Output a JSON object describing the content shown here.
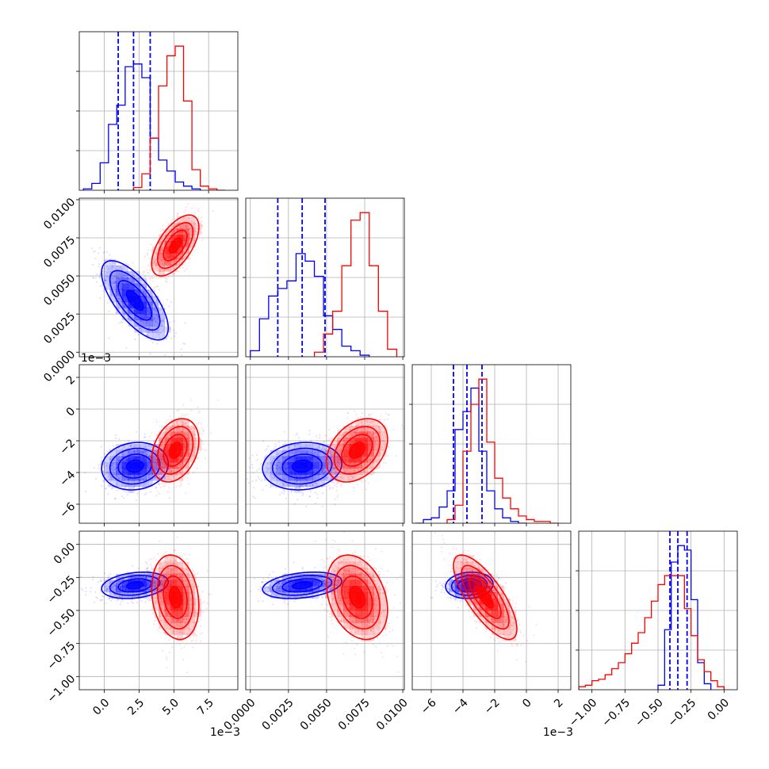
{
  "chart_data": {
    "type": "corner",
    "grid": true,
    "params": [
      {
        "range": [
          -1.8,
          9.6
        ],
        "ticks": [
          0.0,
          2.5,
          5.0,
          7.5
        ],
        "tick_labels": [
          "0.0",
          "2.5",
          "5.0",
          "7.5"
        ],
        "offset": "1e−3"
      },
      {
        "range": [
          -0.0003,
          0.0101
        ],
        "ticks": [
          0.0,
          0.0025,
          0.005,
          0.0075,
          0.01
        ],
        "tick_labels": [
          "0.0000",
          "0.0025",
          "0.0050",
          "0.0075",
          "0.0100"
        ],
        "offset": ""
      },
      {
        "range": [
          -7.2,
          2.8
        ],
        "ticks": [
          -6,
          -4,
          -2,
          0,
          2
        ],
        "tick_labels": [
          "−6",
          "−4",
          "−2",
          "0",
          "2"
        ],
        "offset": "1e−3"
      },
      {
        "range": [
          -1.1,
          0.1
        ],
        "ticks": [
          -1.0,
          -0.75,
          -0.5,
          -0.25,
          0.0
        ],
        "tick_labels": [
          "−1.00",
          "−0.75",
          "−0.50",
          "−0.25",
          "0.00"
        ],
        "offset": ""
      }
    ],
    "series": [
      {
        "color": "#0000ff",
        "means": [
          2.2,
          0.0034,
          -3.6,
          -0.31
        ],
        "sds": [
          1.2,
          0.0013,
          0.75,
          0.05
        ],
        "corr": [
          [
            1.0,
            -0.7,
            0.1,
            0.25
          ],
          [
            -0.7,
            1.0,
            0.1,
            0.3
          ],
          [
            0.1,
            0.1,
            1.0,
            0.1
          ],
          [
            0.25,
            0.3,
            0.1,
            1.0
          ]
        ],
        "quantiles": [
          [
            1.0,
            2.1,
            3.3
          ],
          [
            0.0018,
            0.0034,
            0.0049
          ],
          [
            -4.6,
            -3.75,
            -2.8
          ],
          [
            -0.41,
            -0.35,
            -0.28
          ]
        ],
        "hist": [
          {
            "edges": [
              -1.5,
              -0.9,
              -0.3,
              0.3,
              0.9,
              1.5,
              2.1,
              2.7,
              3.3,
              3.9,
              4.5,
              5.1,
              5.7,
              6.3,
              6.9
            ],
            "counts": [
              1,
              5,
              20,
              48,
              62,
              90,
              92,
              82,
              38,
              22,
              14,
              6,
              3,
              1
            ]
          },
          {
            "edges": [
              0.0,
              0.0006,
              0.0012,
              0.0018,
              0.0024,
              0.003,
              0.0036,
              0.0042,
              0.0048,
              0.0054,
              0.006,
              0.0066,
              0.0072,
              0.0078
            ],
            "counts": [
              4,
              25,
              40,
              45,
              50,
              68,
              63,
              53,
              27,
              18,
              7,
              4,
              1
            ]
          },
          {
            "edges": [
              -7.0,
              -6.5,
              -6.0,
              -5.5,
              -5.0,
              -4.5,
              -4.0,
              -3.5,
              -3.0,
              -2.5,
              -2.0,
              -1.5,
              -1.0,
              -0.5,
              0.0
            ],
            "counts": [
              0,
              2,
              3,
              9,
              18,
              52,
              62,
              75,
              40,
              18,
              8,
              3,
              1,
              0
            ]
          },
          {
            "edges": [
              -0.5,
              -0.45,
              -0.4,
              -0.35,
              -0.3,
              -0.25,
              -0.2,
              -0.15,
              -0.1
            ],
            "counts": [
              3,
              40,
              85,
              96,
              93,
              60,
              18,
              4
            ]
          }
        ]
      },
      {
        "color": "#ff0000",
        "means": [
          5.1,
          0.007,
          -2.6,
          -0.4
        ],
        "sds": [
          0.85,
          0.001,
          1.0,
          0.16
        ],
        "corr": [
          [
            1.0,
            0.6,
            0.3,
            -0.2
          ],
          [
            0.6,
            1.0,
            0.35,
            -0.3
          ],
          [
            0.3,
            0.35,
            1.0,
            -0.75
          ],
          [
            -0.2,
            -0.3,
            -0.75,
            1.0
          ]
        ],
        "quantiles": null,
        "hist": [
          {
            "edges": [
              2.1,
              2.7,
              3.3,
              3.9,
              4.5,
              5.1,
              5.7,
              6.3,
              6.9,
              7.5,
              8.1,
              8.7
            ],
            "counts": [
              2,
              12,
              38,
              76,
              98,
              105,
              65,
              15,
              3,
              1,
              0
            ]
          },
          {
            "edges": [
              0.0042,
              0.0048,
              0.0054,
              0.006,
              0.0066,
              0.0072,
              0.0078,
              0.0084,
              0.009,
              0.0096
            ],
            "counts": [
              3,
              15,
              30,
              60,
              90,
              95,
              60,
              30,
              5
            ]
          },
          {
            "edges": [
              -5.0,
              -4.5,
              -4.0,
              -3.5,
              -3.0,
              -2.5,
              -2.0,
              -1.5,
              -1.0,
              -0.5,
              0.0,
              0.5,
              1.0,
              1.5,
              2.0
            ],
            "counts": [
              2,
              10,
              40,
              66,
              80,
              45,
              25,
              14,
              8,
              4,
              2,
              1,
              1,
              0
            ]
          },
          {
            "edges": [
              -1.1,
              -1.05,
              -1.0,
              -0.95,
              -0.9,
              -0.85,
              -0.8,
              -0.75,
              -0.7,
              -0.65,
              -0.6,
              -0.55,
              -0.5,
              -0.45,
              -0.4,
              -0.35,
              -0.3,
              -0.25,
              -0.2,
              -0.15,
              -0.1,
              -0.05,
              0.0
            ],
            "counts": [
              2,
              3,
              6,
              7,
              10,
              14,
              18,
              24,
              31,
              38,
              48,
              59,
              70,
              76,
              76,
              76,
              54,
              36,
              20,
              12,
              6,
              2
            ]
          }
        ]
      }
    ]
  }
}
